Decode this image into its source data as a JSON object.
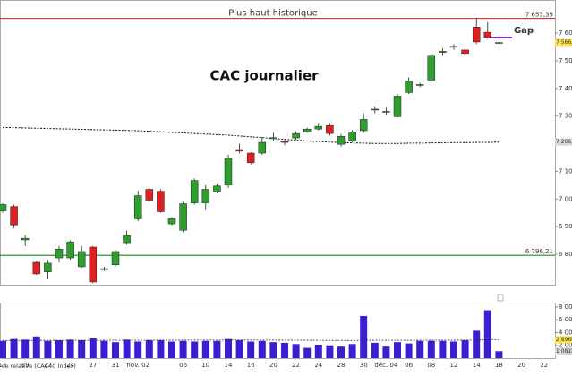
{
  "chart_data": {
    "type": "candlestick",
    "title": "CAC journalier",
    "record_text": "Plus haut historique",
    "gap_text": "Gap",
    "relative_text": "ce relative (CAC40 Index)",
    "up_color": "#2e9e2e",
    "down_color": "#e02020",
    "categories": [
      "17",
      null,
      "19",
      null,
      "22",
      null,
      "24",
      null,
      "27",
      null,
      "31",
      null,
      "nov. 02",
      null,
      null,
      null,
      "06",
      null,
      "10",
      null,
      "14",
      null,
      "16",
      null,
      "20",
      null,
      "22",
      null,
      "24",
      null,
      "28",
      null,
      "30",
      null,
      "déc. 04",
      null,
      "06",
      null,
      "08",
      null,
      "12",
      null,
      "14",
      null,
      "18",
      null,
      "20",
      null,
      "22"
    ],
    "open": [
      6957,
      6973,
      6852,
      6771,
      6736,
      6787,
      6787,
      6755,
      6826,
      6745,
      6762,
      6842,
      6928,
      7035,
      7028,
      6910,
      6887,
      6986,
      6986,
      7025,
      7051,
      7179,
      7166,
      7166,
      7218,
      7208,
      7221,
      7243,
      7253,
      7266,
      7198,
      7211,
      7247,
      7322,
      7314,
      7298,
      7385,
      7411,
      7430,
      7530,
      7550,
      7539,
      7622,
      7603,
      7563,
      null,
      null,
      null,
      null
    ],
    "high": [
      6985,
      6980,
      6870,
      6775,
      6780,
      6830,
      6850,
      6830,
      6830,
      6755,
      6815,
      6885,
      7030,
      7040,
      7035,
      6935,
      6990,
      7075,
      7050,
      7055,
      7160,
      7200,
      7170,
      7225,
      7240,
      7215,
      7245,
      7258,
      7275,
      7275,
      7235,
      7250,
      7310,
      7335,
      7330,
      7380,
      7440,
      7420,
      7525,
      7545,
      7560,
      7545,
      7654,
      7640,
      7580,
      null,
      null,
      null,
      null
    ],
    "low": [
      6950,
      6895,
      6830,
      6725,
      6710,
      6770,
      6780,
      6750,
      6695,
      6740,
      6755,
      6835,
      6920,
      6990,
      6950,
      6905,
      6880,
      6980,
      6960,
      7020,
      7040,
      7165,
      7125,
      7160,
      7210,
      7195,
      7215,
      7240,
      7248,
      7230,
      7190,
      7205,
      7240,
      7310,
      7305,
      7295,
      7380,
      7405,
      7425,
      7520,
      7540,
      7520,
      7560,
      7580,
      7550,
      null,
      null,
      null,
      null
    ],
    "close": [
      6980,
      6906,
      6858,
      6729,
      6768,
      6819,
      6845,
      6810,
      6700,
      6748,
      6810,
      6868,
      7012,
      6996,
      6954,
      6930,
      6983,
      7067,
      7035,
      7047,
      7147,
      7173,
      7131,
      7205,
      7222,
      7205,
      7237,
      7253,
      7263,
      7237,
      7227,
      7243,
      7288,
      7325,
      7317,
      7372,
      7427,
      7414,
      7520,
      7534,
      7552,
      7526,
      7568,
      7584,
      7566,
      null,
      null,
      null,
      null
    ],
    "moving_average": [
      7259,
      7258,
      7257,
      7256,
      7255,
      7254,
      7253,
      7252,
      7251,
      7250,
      7249,
      7248,
      7247,
      7245,
      7243,
      7241,
      7239,
      7237,
      7235,
      7233,
      7231,
      7228,
      7225,
      7222,
      7219,
      7216,
      7213,
      7210,
      7208,
      7206,
      7204,
      7203,
      7202,
      7201,
      7201,
      7201,
      7202,
      7202,
      7203,
      7203,
      7204,
      7204,
      7205,
      7205,
      7206.04,
      null,
      null,
      null,
      null
    ],
    "ma_label": {
      "value": 7206.04,
      "label": "7 206,04"
    },
    "last_price": {
      "value": 7566,
      "label": "7 566,00"
    },
    "levels": [
      {
        "value": 7653.39,
        "label": "7 653,39",
        "color": "#e03030"
      },
      {
        "value": 6796.21,
        "label": "6 796,21",
        "color": "#1a8c1a"
      }
    ],
    "ylim": [
      6690,
      7720
    ],
    "yticks": [
      {
        "value": 6800,
        "label": "6 800"
      },
      {
        "value": 6900,
        "label": "6 900"
      },
      {
        "value": 7000,
        "label": "7 000"
      },
      {
        "value": 7100,
        "label": "7 100"
      },
      {
        "value": 7200,
        "label": "7 200"
      },
      {
        "value": 7300,
        "label": "7 300"
      },
      {
        "value": 7400,
        "label": "7 400"
      },
      {
        "value": 7500,
        "label": "7 500"
      },
      {
        "value": 7600,
        "label": "7 600"
      }
    ],
    "volume": {
      "color": "#3a1fd0",
      "values": [
        2700,
        3000,
        2900,
        3400,
        2700,
        2800,
        2900,
        2800,
        3100,
        2700,
        2500,
        2900,
        2600,
        2800,
        2800,
        2600,
        2700,
        2600,
        2700,
        2700,
        3000,
        2800,
        2600,
        2700,
        2500,
        2400,
        2200,
        1600,
        2100,
        2000,
        1800,
        2200,
        6600,
        2400,
        1800,
        2500,
        2300,
        2700,
        2700,
        2700,
        2600,
        2800,
        4300,
        7500,
        1081,
        null,
        null,
        null,
        null
      ],
      "average": [
        2760,
        2765,
        2770,
        2775,
        2780,
        2785,
        2790,
        2795,
        2800,
        2800,
        2805,
        2805,
        2810,
        2810,
        2815,
        2815,
        2820,
        2820,
        2825,
        2825,
        2830,
        2830,
        2830,
        2825,
        2820,
        2815,
        2810,
        2800,
        2790,
        2780,
        2770,
        2760,
        2800,
        2800,
        2790,
        2790,
        2795,
        2800,
        2805,
        2810,
        2815,
        2820,
        2850,
        2890,
        2896,
        null,
        null,
        null,
        null
      ],
      "average_label": {
        "value": 2896,
        "label": "2 896k"
      },
      "last_label": {
        "value": 1081,
        "label": "1 081k"
      },
      "ylim": [
        0,
        8700
      ],
      "yticks": [
        {
          "value": 2000,
          "label": "2 000k"
        },
        {
          "value": 4000,
          "label": "4 000k"
        },
        {
          "value": 6000,
          "label": "6 000k"
        },
        {
          "value": 8000,
          "label": "8 000k"
        }
      ]
    }
  }
}
